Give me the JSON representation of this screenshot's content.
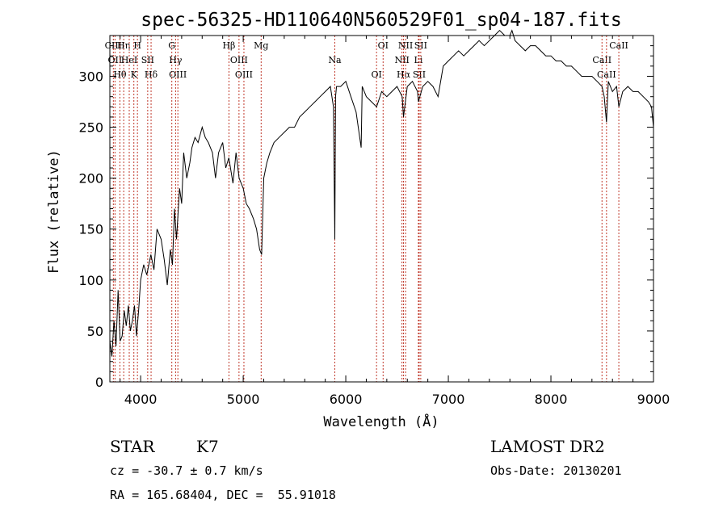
{
  "chart_data": {
    "type": "line",
    "title": "spec-56325-HD110640N560529F01_sp04-187.fits",
    "xlabel": "Wavelength (Å)",
    "ylabel": "Flux (relative)",
    "xlim": [
      3700,
      9000
    ],
    "ylim": [
      0,
      340
    ],
    "xticks": [
      4000,
      5000,
      6000,
      7000,
      8000,
      9000
    ],
    "yticks": [
      0,
      50,
      100,
      150,
      200,
      250,
      300
    ],
    "xtick_labels": [
      "4000",
      "5000",
      "6000",
      "7000",
      "8000",
      "9000"
    ],
    "ytick_labels": [
      "0",
      "50",
      "100",
      "150",
      "200",
      "250",
      "300"
    ],
    "grid": false,
    "series": [
      {
        "x": [
          3700,
          3720,
          3740,
          3760,
          3780,
          3800,
          3820,
          3840,
          3860,
          3880,
          3900,
          3920,
          3940,
          3960,
          3980,
          4000,
          4030,
          4060,
          4100,
          4130,
          4160,
          4200,
          4230,
          4260,
          4290,
          4310,
          4330,
          4350,
          4380,
          4400,
          4420,
          4450,
          4480,
          4500,
          4530,
          4560,
          4600,
          4630,
          4660,
          4700,
          4730,
          4760,
          4800,
          4830,
          4860,
          4900,
          4930,
          4960,
          5000,
          5030,
          5060,
          5100,
          5130,
          5160,
          5180,
          5200,
          5230,
          5260,
          5300,
          5350,
          5400,
          5450,
          5500,
          5550,
          5600,
          5650,
          5700,
          5750,
          5800,
          5850,
          5880,
          5893,
          5900,
          5910,
          5950,
          6000,
          6050,
          6100,
          6150,
          6160,
          6200,
          6250,
          6300,
          6350,
          6400,
          6450,
          6500,
          6550,
          6563,
          6600,
          6650,
          6700,
          6708,
          6750,
          6800,
          6850,
          6900,
          6950,
          7000,
          7050,
          7100,
          7150,
          7200,
          7250,
          7300,
          7350,
          7400,
          7450,
          7500,
          7550,
          7600,
          7620,
          7650,
          7700,
          7750,
          7800,
          7850,
          7900,
          7950,
          8000,
          8050,
          8100,
          8150,
          8200,
          8250,
          8300,
          8350,
          8400,
          8450,
          8498,
          8520,
          8542,
          8560,
          8600,
          8640,
          8662,
          8700,
          8750,
          8800,
          8850,
          8900,
          8950,
          8980,
          9000
        ],
        "y": [
          40,
          25,
          60,
          35,
          90,
          40,
          45,
          70,
          55,
          75,
          50,
          60,
          75,
          45,
          70,
          100,
          115,
          105,
          125,
          110,
          150,
          140,
          120,
          95,
          130,
          115,
          170,
          140,
          190,
          175,
          225,
          200,
          215,
          230,
          240,
          235,
          250,
          240,
          235,
          225,
          200,
          225,
          235,
          210,
          220,
          195,
          225,
          200,
          190,
          175,
          170,
          160,
          150,
          130,
          125,
          200,
          215,
          225,
          235,
          240,
          245,
          250,
          250,
          260,
          265,
          270,
          275,
          280,
          285,
          290,
          270,
          140,
          280,
          290,
          290,
          295,
          280,
          265,
          230,
          290,
          280,
          275,
          270,
          285,
          280,
          285,
          290,
          280,
          260,
          290,
          295,
          285,
          275,
          290,
          295,
          290,
          280,
          310,
          315,
          320,
          325,
          320,
          325,
          330,
          335,
          330,
          335,
          340,
          345,
          340,
          340,
          345,
          335,
          330,
          325,
          330,
          330,
          325,
          320,
          320,
          315,
          315,
          310,
          310,
          305,
          300,
          300,
          300,
          295,
          290,
          280,
          255,
          295,
          285,
          290,
          270,
          285,
          290,
          285,
          285,
          280,
          275,
          270,
          250
        ]
      }
    ],
    "line_markers": [
      {
        "wave": 3734,
        "label": "CIII"
      },
      {
        "wave": 3750,
        "label": "OII"
      },
      {
        "wave": 3798,
        "label": "Hθ"
      },
      {
        "wave": 3835,
        "label": "Hη"
      },
      {
        "wave": 3889,
        "label": "HeI"
      },
      {
        "wave": 3934,
        "label": "K"
      },
      {
        "wave": 3969,
        "label": "H"
      },
      {
        "wave": 4069,
        "label": "SII"
      },
      {
        "wave": 4102,
        "label": "Hδ"
      },
      {
        "wave": 4304,
        "label": "G"
      },
      {
        "wave": 4341,
        "label": "Hγ"
      },
      {
        "wave": 4363,
        "label": "OIII"
      },
      {
        "wave": 4861,
        "label": "Hβ"
      },
      {
        "wave": 4959,
        "label": "OIII"
      },
      {
        "wave": 5007,
        "label": "OIII"
      },
      {
        "wave": 5175,
        "label": "Mg"
      },
      {
        "wave": 5893,
        "label": "Na"
      },
      {
        "wave": 6300,
        "label": "OI"
      },
      {
        "wave": 6364,
        "label": "OI"
      },
      {
        "wave": 6548,
        "label": "NII"
      },
      {
        "wave": 6563,
        "label": "Hα"
      },
      {
        "wave": 6583,
        "label": "NII"
      },
      {
        "wave": 6708,
        "label": "Li"
      },
      {
        "wave": 6716,
        "label": "SII"
      },
      {
        "wave": 6731,
        "label": "SII"
      },
      {
        "wave": 8498,
        "label": "CaII"
      },
      {
        "wave": 8542,
        "label": "CaII"
      },
      {
        "wave": 8662,
        "label": "CaII"
      }
    ]
  },
  "info": {
    "class": "STAR",
    "subclass": "K7",
    "survey": "LAMOST DR2",
    "cz": "cz = -30.7 ± 0.7 km/s",
    "obs_date": "Obs-Date: 20130201",
    "radec": "RA = 165.68404, DEC =  55.91018"
  }
}
